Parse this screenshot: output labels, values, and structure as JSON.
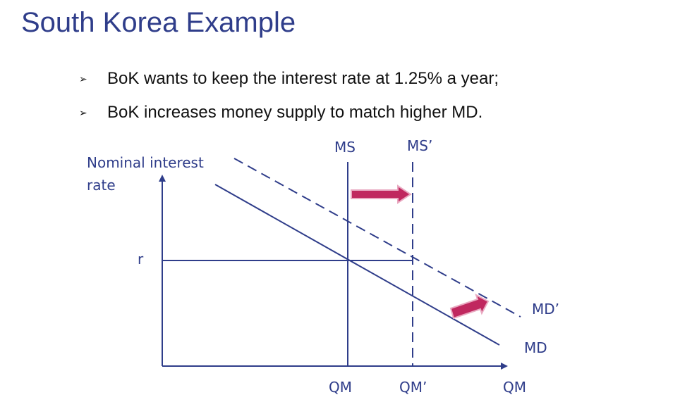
{
  "title": "South Korea Example",
  "bullets": [
    "BoK wants to keep the interest rate at 1.25% a year;",
    "BoK increases money supply to match higher MD."
  ],
  "colors": {
    "title": "#2f3d8a",
    "lines": "#2f3d8a",
    "arrow": "#c0285f"
  },
  "diagram": {
    "y_axis_label_line1": "Nominal interest",
    "y_axis_label_line2": "rate",
    "x_axis_label": "QM",
    "rate_label": "r",
    "ms_label": "MS",
    "ms_prime_label": "MS’",
    "md_label": "MD",
    "md_prime_label": "MD’",
    "qm_label": "QM",
    "qm_prime_label": "QM’"
  }
}
